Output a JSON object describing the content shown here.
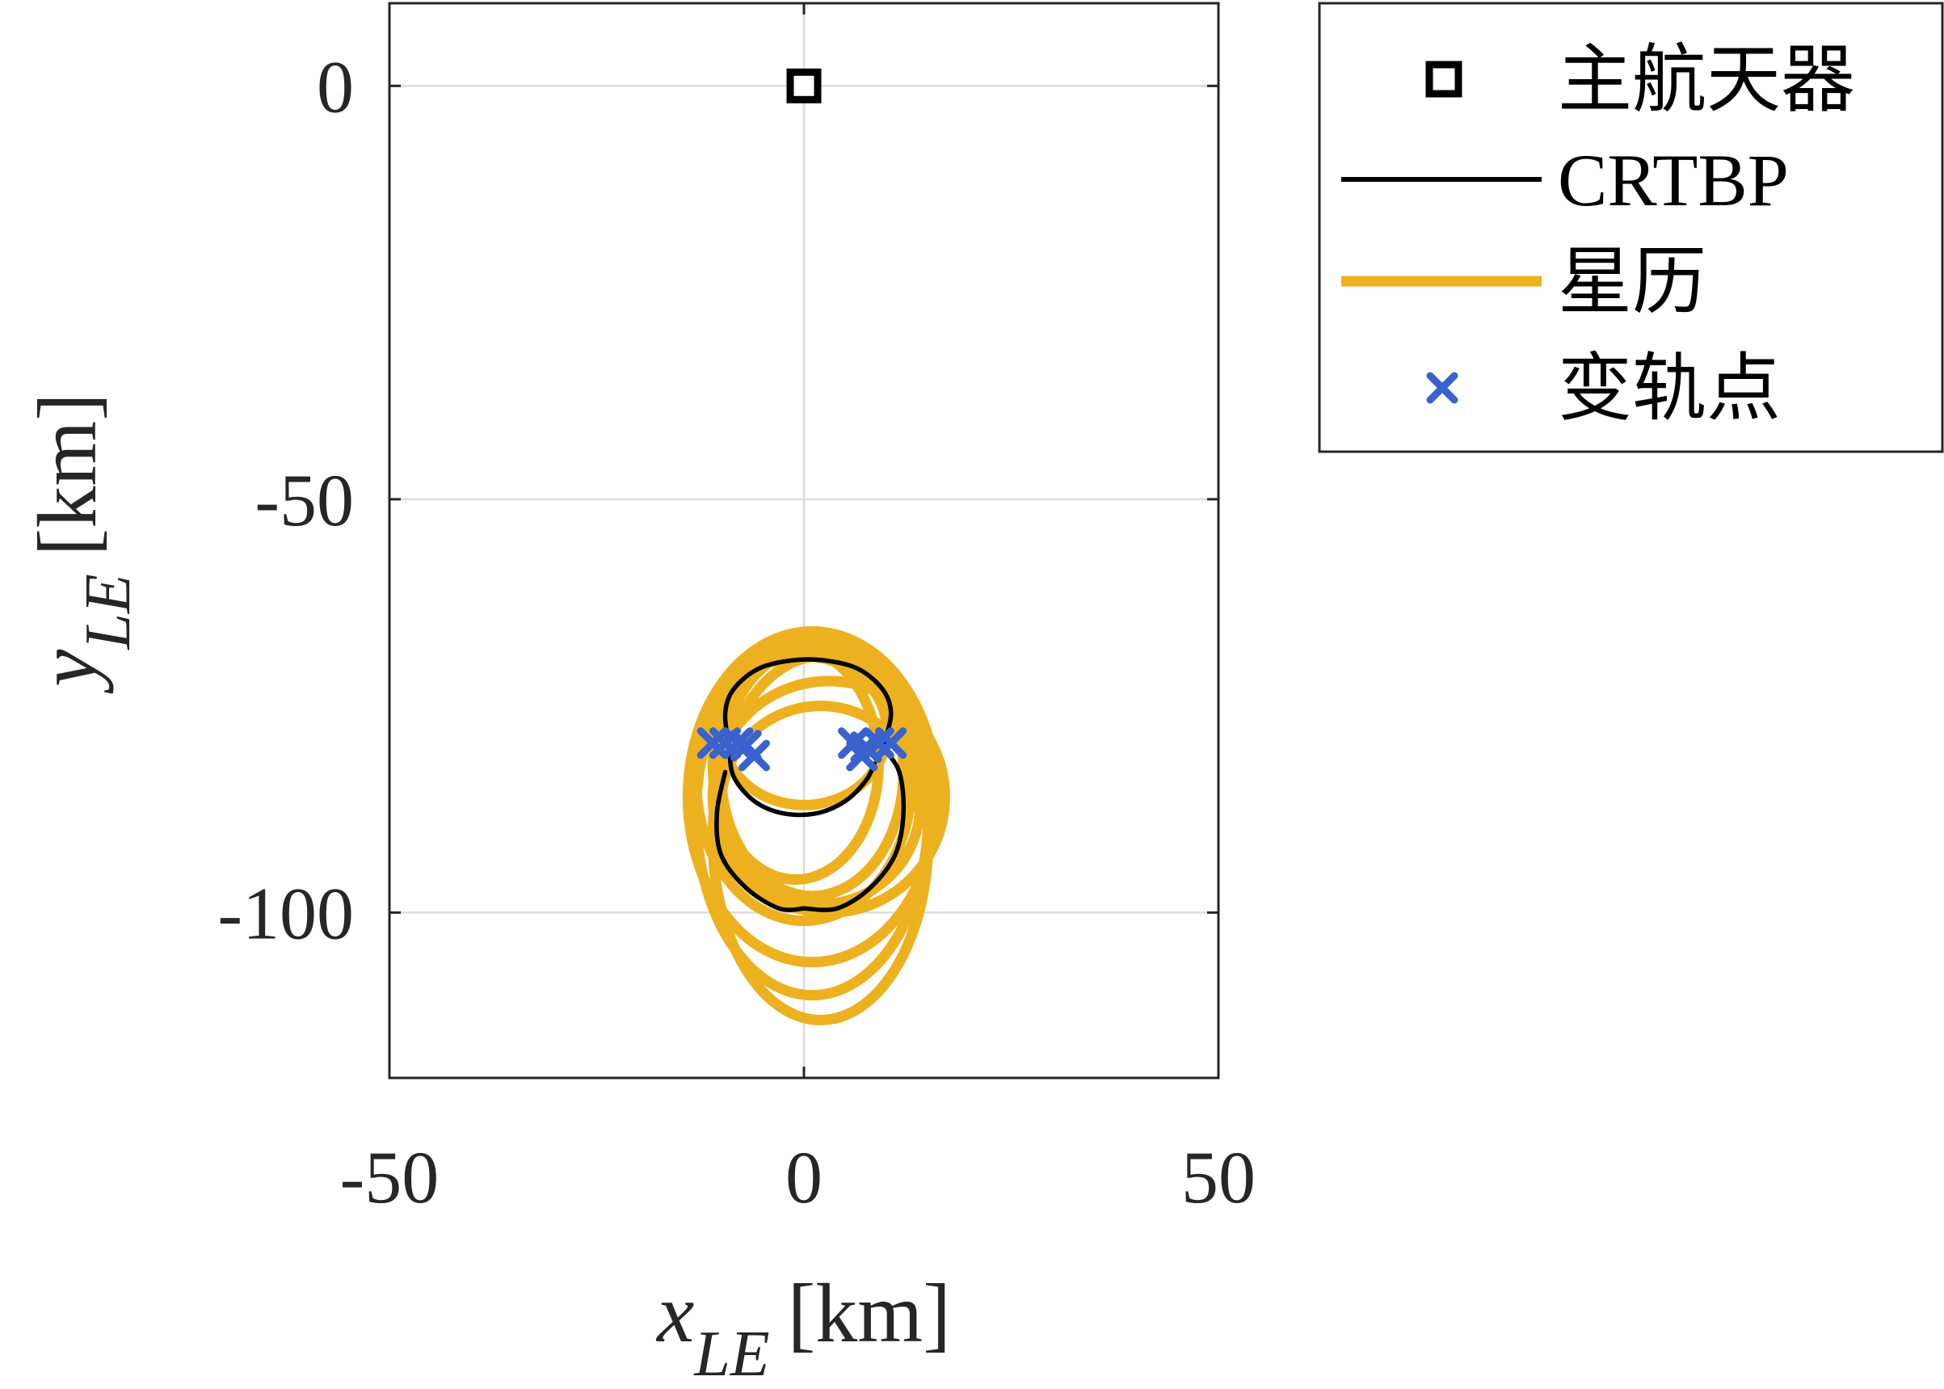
{
  "chart_data": {
    "type": "line",
    "xlim": [
      -50,
      50
    ],
    "ylim": [
      -120,
      10
    ],
    "x_ticks": [
      {
        "value": -50,
        "label": "-50"
      },
      {
        "value": 0,
        "label": "0"
      },
      {
        "value": 50,
        "label": "50"
      }
    ],
    "y_ticks": [
      {
        "value": 0,
        "label": "0"
      },
      {
        "value": -50,
        "label": "-50"
      },
      {
        "value": -100,
        "label": "-100"
      }
    ],
    "xlabel": {
      "var": "x",
      "sub": "LE",
      "unit": "[km]"
    },
    "ylabel": {
      "var": "y",
      "sub": "LE",
      "unit": "[km]"
    },
    "grid": true,
    "legend_position": "outside-top-right",
    "legend": [
      {
        "label": "主航天器",
        "marker": "square",
        "color": "#000000"
      },
      {
        "label": "CRTBP",
        "marker": "line",
        "color": "#000000"
      },
      {
        "label": "星历",
        "marker": "line",
        "color": "#EDB120"
      },
      {
        "label": "变轨点",
        "marker": "x",
        "color": "#3A62CF"
      }
    ],
    "chief": {
      "x": 0,
      "y": 0
    },
    "crtbp": {
      "color": "#000000",
      "upper_arc": [
        [
          -9,
          -80
        ],
        [
          -9.5,
          -76
        ],
        [
          -8.5,
          -73
        ],
        [
          -5.5,
          -70.5
        ],
        [
          -1.5,
          -69.5
        ],
        [
          2.5,
          -69.5
        ],
        [
          6.5,
          -70.5
        ],
        [
          9.5,
          -73
        ],
        [
          10.5,
          -76
        ],
        [
          9.5,
          -80
        ]
      ],
      "lower_left_arc": [
        [
          -9,
          -80
        ],
        [
          -8.5,
          -83.5
        ],
        [
          -6,
          -86.5
        ],
        [
          -2.5,
          -88
        ],
        [
          1.5,
          -88
        ],
        [
          5,
          -86.5
        ],
        [
          7.5,
          -84
        ],
        [
          8.5,
          -82
        ]
      ],
      "right_crescent": [
        [
          9.5,
          -80
        ],
        [
          11.5,
          -83
        ],
        [
          12,
          -88
        ],
        [
          11,
          -93
        ],
        [
          8,
          -97
        ],
        [
          4,
          -99.5
        ],
        [
          0,
          -99.5
        ]
      ],
      "left_crescent": [
        [
          -9.5,
          -83
        ],
        [
          -10.5,
          -88
        ],
        [
          -10,
          -93
        ],
        [
          -7,
          -97
        ],
        [
          -3,
          -99.5
        ],
        [
          0,
          -99.5
        ]
      ]
    },
    "ephemeris": {
      "color": "#EDB120",
      "loops": [
        {
          "cx": 0,
          "cy": -84,
          "rx": 13,
          "ry": 17
        },
        {
          "cx": 1,
          "cy": -86,
          "rx": 15,
          "ry": 20
        },
        {
          "cx": 1,
          "cy": -88,
          "rx": 14,
          "ry": 22
        },
        {
          "cx": 2,
          "cy": -91,
          "rx": 13,
          "ry": 22
        },
        {
          "cx": 1,
          "cy": -83,
          "rx": 11,
          "ry": 15
        },
        {
          "cx": -1,
          "cy": -82,
          "rx": 10,
          "ry": 14
        },
        {
          "cx": 0,
          "cy": -78,
          "rx": 10,
          "ry": 9
        },
        {
          "cx": 2,
          "cy": -87,
          "rx": 12,
          "ry": 12
        },
        {
          "cx": 3,
          "cy": -86,
          "rx": 14,
          "ry": 14
        }
      ]
    },
    "maneuvers": {
      "color": "#3A62CF",
      "points": [
        [
          -11,
          -79.5
        ],
        [
          -9.5,
          -79.5
        ],
        [
          -8,
          -79.5
        ],
        [
          -7,
          -79.8
        ],
        [
          -6,
          -81
        ],
        [
          6,
          -79.5
        ],
        [
          7.5,
          -80
        ],
        [
          9,
          -79.5
        ],
        [
          10.5,
          -79.5
        ],
        [
          7,
          -81
        ]
      ]
    }
  }
}
